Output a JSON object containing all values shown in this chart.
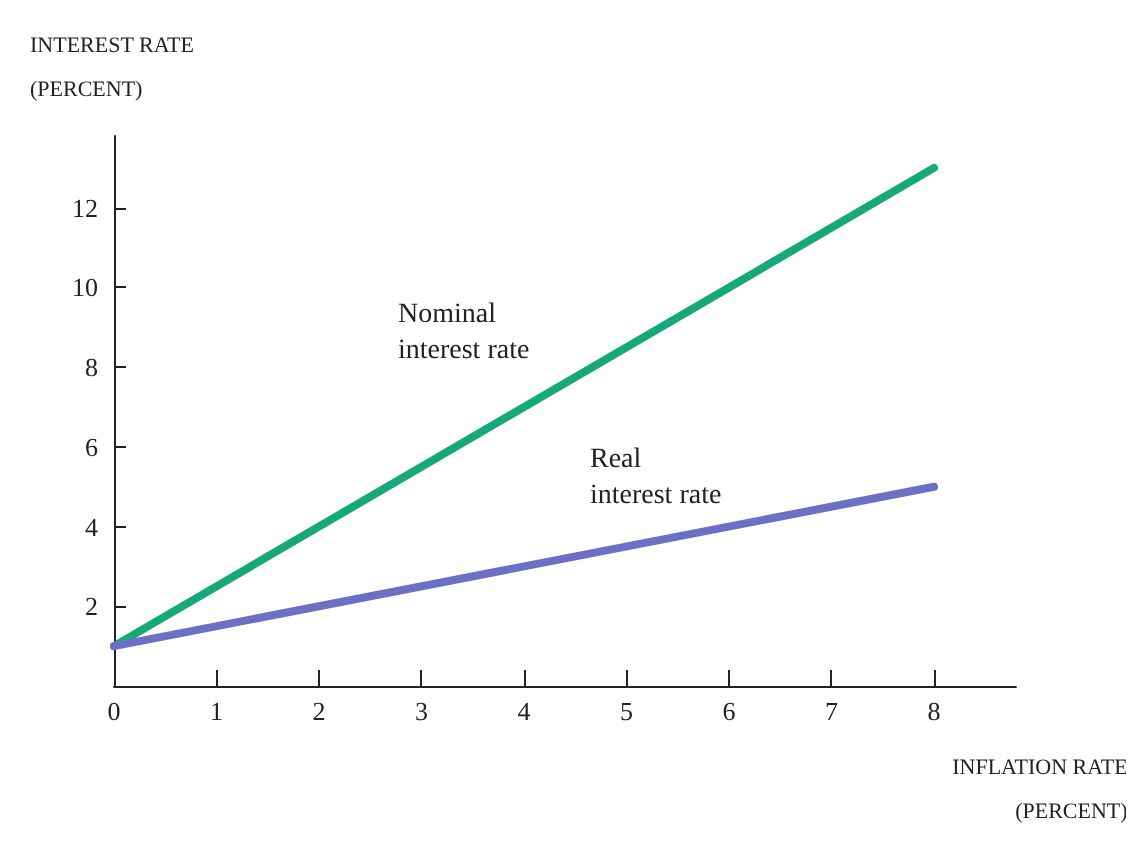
{
  "chart_data": {
    "type": "line",
    "xlabel": "INFLATION RATE\n(PERCENT)",
    "ylabel": "INTEREST RATE\n(PERCENT)",
    "x": [
      0,
      8
    ],
    "series": [
      {
        "name": "Nominal\ninterest rate",
        "color": "#17a87a",
        "values": [
          1,
          13
        ]
      },
      {
        "name": "Real\ninterest rate",
        "color": "#6b70c4",
        "values": [
          1,
          5
        ]
      }
    ],
    "xlim": [
      0,
      8.8
    ],
    "xticks": [
      0,
      1,
      2,
      3,
      4,
      5,
      6,
      7,
      8
    ],
    "ylim": [
      0,
      13.8
    ],
    "yticks": [
      2,
      4,
      6,
      8,
      10,
      12
    ],
    "grid": false,
    "legend": false,
    "marker": "none",
    "line_style": "solid"
  }
}
